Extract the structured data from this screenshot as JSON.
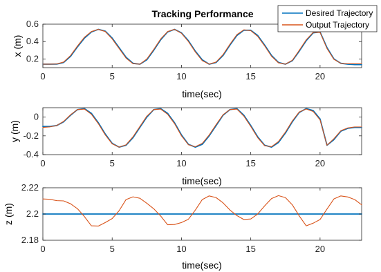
{
  "colors": {
    "desired": "#0072BD",
    "output": "#D95319"
  },
  "chart_data": [
    {
      "type": "line",
      "title": "Tracking Performance",
      "xlabel": "time(sec)",
      "ylabel": "x (m)",
      "xlim": [
        0,
        23
      ],
      "ylim": [
        0.1,
        0.6
      ],
      "xticks": [
        "0",
        "5",
        "10",
        "15",
        "20"
      ],
      "yticks": [
        "0.2",
        "0.4",
        "0.6"
      ],
      "grid": true,
      "legend": {
        "position": "top-right",
        "entries": [
          "Desired Trajectory",
          "Output Trajectory"
        ]
      },
      "series": [
        {
          "name": "Desired Trajectory",
          "x": [
            0,
            0.5,
            1.0,
            1.5,
            2.0,
            2.5,
            3.0,
            3.5,
            4.0,
            4.5,
            5.0,
            5.5,
            6.0,
            6.5,
            7.0,
            7.5,
            8.0,
            8.5,
            9.0,
            9.5,
            10.0,
            10.5,
            11.0,
            11.5,
            12.0,
            12.5,
            13.0,
            13.5,
            14.0,
            14.5,
            15.0,
            15.5,
            16.0,
            16.5,
            17.0,
            17.5,
            18.0,
            18.5,
            19.0,
            19.5,
            20.0,
            20.5,
            21.0,
            21.5,
            22.0,
            22.5,
            23.0
          ],
          "y": [
            0.14,
            0.14,
            0.141,
            0.16,
            0.23,
            0.34,
            0.44,
            0.51,
            0.54,
            0.52,
            0.44,
            0.33,
            0.22,
            0.15,
            0.14,
            0.19,
            0.3,
            0.42,
            0.51,
            0.54,
            0.5,
            0.41,
            0.29,
            0.19,
            0.14,
            0.16,
            0.24,
            0.36,
            0.47,
            0.53,
            0.53,
            0.47,
            0.36,
            0.24,
            0.16,
            0.14,
            0.18,
            0.29,
            0.41,
            0.5,
            0.51,
            0.33,
            0.2,
            0.15,
            0.14,
            0.135,
            0.135
          ]
        },
        {
          "name": "Output Trajectory",
          "x": [
            0,
            0.5,
            1.0,
            1.5,
            2.0,
            2.5,
            3.0,
            3.5,
            4.0,
            4.5,
            5.0,
            5.5,
            6.0,
            6.5,
            7.0,
            7.5,
            8.0,
            8.5,
            9.0,
            9.5,
            10.0,
            10.5,
            11.0,
            11.5,
            12.0,
            12.5,
            13.0,
            13.5,
            14.0,
            14.5,
            15.0,
            15.5,
            16.0,
            16.5,
            17.0,
            17.5,
            18.0,
            18.5,
            19.0,
            19.5,
            20.0,
            20.5,
            21.0,
            21.5,
            22.0,
            22.5,
            23.0
          ],
          "y": [
            0.14,
            0.14,
            0.142,
            0.165,
            0.24,
            0.35,
            0.45,
            0.515,
            0.54,
            0.515,
            0.43,
            0.32,
            0.21,
            0.145,
            0.14,
            0.2,
            0.31,
            0.43,
            0.515,
            0.54,
            0.495,
            0.4,
            0.28,
            0.18,
            0.14,
            0.165,
            0.25,
            0.37,
            0.48,
            0.535,
            0.525,
            0.46,
            0.35,
            0.23,
            0.155,
            0.14,
            0.185,
            0.3,
            0.42,
            0.505,
            0.505,
            0.32,
            0.195,
            0.15,
            0.145,
            0.145,
            0.145
          ]
        }
      ]
    },
    {
      "type": "line",
      "xlabel": "time(sec)",
      "ylabel": "y (m)",
      "xlim": [
        0,
        23
      ],
      "ylim": [
        -0.4,
        0.1
      ],
      "xticks": [
        "0",
        "5",
        "10",
        "15",
        "20"
      ],
      "yticks": [
        "-0.4",
        "-0.2",
        "0"
      ],
      "grid": true,
      "series": [
        {
          "name": "Desired Trajectory",
          "x": [
            0,
            0.5,
            1.0,
            1.5,
            2.0,
            2.5,
            3.0,
            3.5,
            4.0,
            4.5,
            5.0,
            5.5,
            6.0,
            6.5,
            7.0,
            7.5,
            8.0,
            8.5,
            9.0,
            9.5,
            10.0,
            10.5,
            11.0,
            11.5,
            12.0,
            12.5,
            13.0,
            13.5,
            14.0,
            14.5,
            15.0,
            15.5,
            16.0,
            16.5,
            17.0,
            17.5,
            18.0,
            18.5,
            19.0,
            19.5,
            20.0,
            20.5,
            21.0,
            21.5,
            22.0,
            22.5,
            23.0
          ],
          "y": [
            -0.1,
            -0.1,
            -0.09,
            -0.05,
            0.02,
            0.08,
            0.09,
            0.04,
            -0.06,
            -0.18,
            -0.28,
            -0.32,
            -0.3,
            -0.22,
            -0.11,
            0.0,
            0.08,
            0.09,
            0.04,
            -0.06,
            -0.19,
            -0.29,
            -0.32,
            -0.29,
            -0.2,
            -0.09,
            0.02,
            0.08,
            0.09,
            0.02,
            -0.09,
            -0.21,
            -0.3,
            -0.32,
            -0.27,
            -0.17,
            -0.05,
            0.05,
            0.09,
            0.07,
            -0.02,
            -0.3,
            -0.24,
            -0.15,
            -0.12,
            -0.11,
            -0.11
          ]
        },
        {
          "name": "Output Trajectory",
          "x": [
            0,
            0.5,
            1.0,
            1.5,
            2.0,
            2.5,
            3.0,
            3.5,
            4.0,
            4.5,
            5.0,
            5.5,
            6.0,
            6.5,
            7.0,
            7.5,
            8.0,
            8.5,
            9.0,
            9.5,
            10.0,
            10.5,
            11.0,
            11.5,
            12.0,
            12.5,
            13.0,
            13.5,
            14.0,
            14.5,
            15.0,
            15.5,
            16.0,
            16.5,
            17.0,
            17.5,
            18.0,
            18.5,
            19.0,
            19.5,
            20.0,
            20.5,
            21.0,
            21.5,
            22.0,
            22.5,
            23.0
          ],
          "y": [
            -0.11,
            -0.105,
            -0.09,
            -0.045,
            0.025,
            0.08,
            0.085,
            0.03,
            -0.07,
            -0.19,
            -0.285,
            -0.32,
            -0.295,
            -0.21,
            -0.1,
            0.01,
            0.08,
            0.085,
            0.03,
            -0.07,
            -0.2,
            -0.295,
            -0.315,
            -0.28,
            -0.19,
            -0.08,
            0.025,
            0.08,
            0.085,
            0.01,
            -0.1,
            -0.22,
            -0.305,
            -0.315,
            -0.26,
            -0.16,
            -0.04,
            0.055,
            0.085,
            0.06,
            -0.03,
            -0.3,
            -0.23,
            -0.145,
            -0.115,
            -0.105,
            -0.105
          ]
        }
      ]
    },
    {
      "type": "line",
      "xlabel": "time(sec)",
      "ylabel": "z (m)",
      "xlim": [
        0,
        23
      ],
      "ylim": [
        2.18,
        2.22
      ],
      "xticks": [
        "0",
        "5",
        "10",
        "15",
        "20"
      ],
      "yticks": [
        "2.18",
        "2.2",
        "2.22"
      ],
      "grid": true,
      "series": [
        {
          "name": "Desired Trajectory",
          "x": [
            0,
            23
          ],
          "y": [
            2.2,
            2.2
          ]
        },
        {
          "name": "Output Trajectory",
          "x": [
            0,
            0.5,
            1.0,
            1.5,
            2.0,
            2.5,
            3.0,
            3.5,
            4.0,
            4.5,
            5.0,
            5.5,
            6.0,
            6.5,
            7.0,
            7.5,
            8.0,
            8.5,
            9.0,
            9.5,
            10.0,
            10.5,
            11.0,
            11.5,
            12.0,
            12.5,
            13.0,
            13.5,
            14.0,
            14.5,
            15.0,
            15.5,
            16.0,
            16.5,
            17.0,
            17.5,
            18.0,
            18.5,
            19.0,
            19.5,
            20.0,
            20.5,
            21.0,
            21.5,
            22.0,
            22.5,
            23.0
          ],
          "y": [
            2.2115,
            2.2112,
            2.2102,
            2.21,
            2.2078,
            2.204,
            2.198,
            2.191,
            2.1908,
            2.1935,
            2.1965,
            2.2025,
            2.211,
            2.2131,
            2.212,
            2.2082,
            2.204,
            2.1985,
            2.1918,
            2.192,
            2.1935,
            2.196,
            2.203,
            2.211,
            2.2138,
            2.2125,
            2.2085,
            2.203,
            2.1988,
            2.1958,
            2.1962,
            2.2,
            2.2062,
            2.2118,
            2.214,
            2.2125,
            2.207,
            2.1985,
            2.191,
            2.193,
            2.1958,
            2.2038,
            2.2115,
            2.2138,
            2.213,
            2.211,
            2.207
          ]
        }
      ]
    }
  ]
}
